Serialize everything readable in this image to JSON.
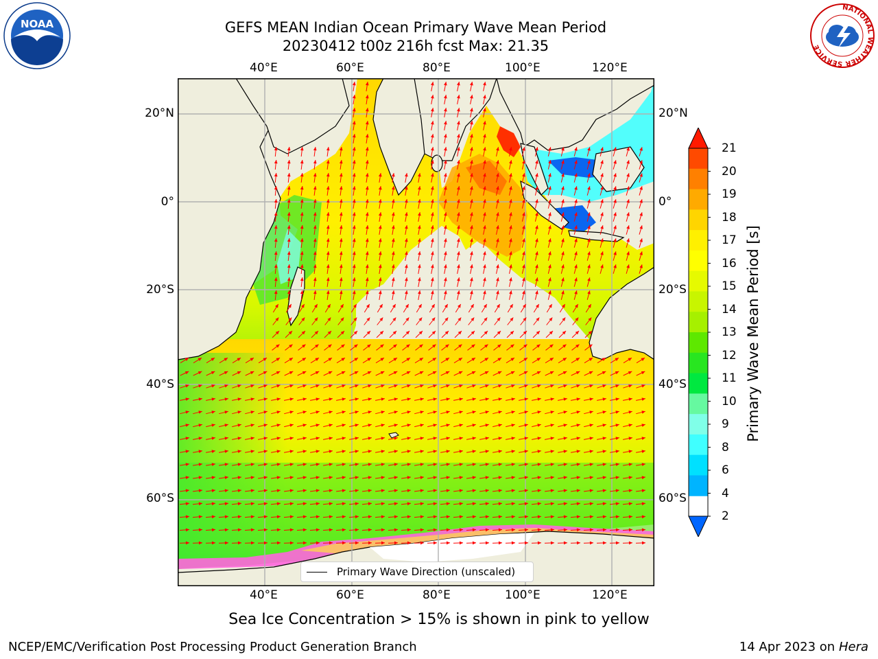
{
  "title": {
    "line1": "GEFS MEAN Indian Ocean Primary Wave Mean Period",
    "line2": "20230412 t00z 216h fcst   Max: 21.35"
  },
  "map": {
    "lon_ticks": [
      "40°E",
      "60°E",
      "80°E",
      "100°E",
      "120°E"
    ],
    "lat_ticks": [
      "20°N",
      "0°",
      "20°S",
      "40°S",
      "60°S"
    ],
    "colors": {
      "land": "#efeedd",
      "grid": "#b0b0b0",
      "arrow": "#ff0000",
      "coast": "#000000"
    },
    "legend_label": "Primary Wave Direction (unscaled)"
  },
  "colorbar": {
    "label": "Primary Wave Mean Period [s]",
    "ticks": [
      "21",
      "20",
      "19",
      "18",
      "17",
      "16",
      "15",
      "14",
      "13",
      "12",
      "11",
      "10",
      "9",
      "8",
      "6",
      "4",
      "2"
    ],
    "colors": [
      "#ff1a00",
      "#ff4a00",
      "#ff8000",
      "#ffaa00",
      "#ffd500",
      "#fff000",
      "#ffff00",
      "#e6fa00",
      "#c8f500",
      "#a6f000",
      "#5ee800",
      "#28e620",
      "#00e840",
      "#66f9a0",
      "#80ffe8",
      "#40ffff",
      "#00e0ff",
      "#00b4ff",
      "#0066ff"
    ]
  },
  "sea_ice_note": "Sea Ice Concentration > 15% is shown in pink to yellow",
  "footer": {
    "left": "NCEP/EMC/Verification Post Processing Product Generation Branch",
    "right_date": "14 Apr 2023 on",
    "right_machine": "Hera"
  },
  "logos": {
    "noaa_text": "NOAA",
    "nws_ring_text": "NATIONAL WEATHER SERVICE"
  }
}
